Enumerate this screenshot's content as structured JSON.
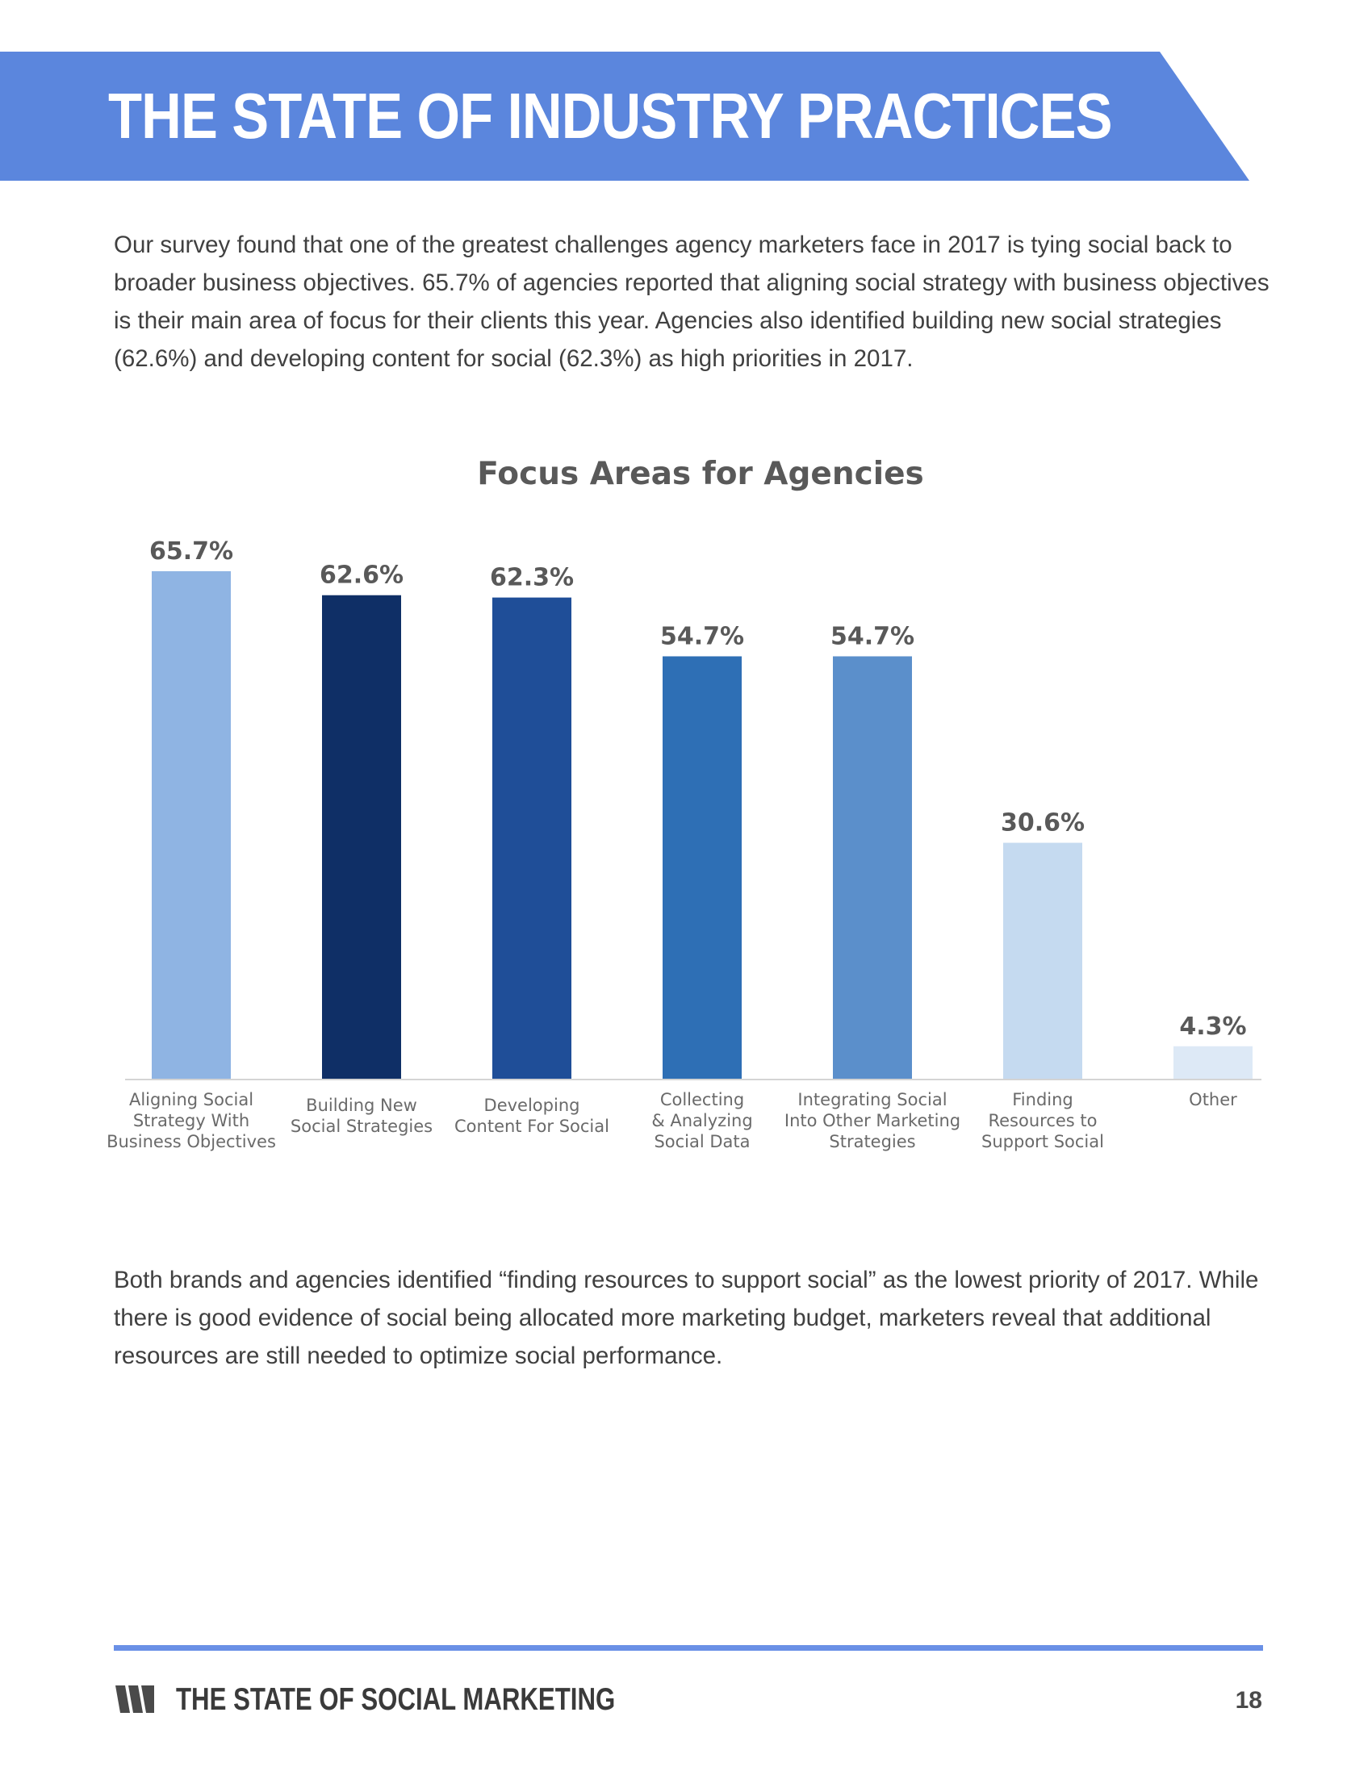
{
  "header": {
    "title": "THE STATE OF INDUSTRY PRACTICES",
    "banner_color": "#5b86dd"
  },
  "intro_text": "Our survey found that one of the greatest challenges agency marketers face in 2017 is tying social back to broader business objectives. 65.7% of agencies reported that aligning social strategy with business objectives is their main area of focus for their clients this year. Agencies also identified building new social strategies (62.6%) and developing content for social (62.3%) as high priorities in 2017.",
  "chart_data": {
    "type": "bar",
    "title": "Focus Areas for Agencies",
    "xlabel": "",
    "ylabel": "",
    "ylim": [
      0,
      70
    ],
    "grid": false,
    "legend": "none",
    "categories": [
      [
        "Aligning Social",
        "Strategy With",
        "Business Objectives"
      ],
      [
        "Building New",
        "Social Strategies"
      ],
      [
        "Developing",
        "Content For Social"
      ],
      [
        "Collecting",
        "& Analyzing",
        "Social Data"
      ],
      [
        "Integrating Social",
        "Into Other Marketing",
        "Strategies"
      ],
      [
        "Finding",
        "Resources to",
        "Support Social"
      ],
      [
        "Other"
      ]
    ],
    "values": [
      65.7,
      62.6,
      62.3,
      54.7,
      54.7,
      30.6,
      4.3
    ],
    "value_labels": [
      "65.7%",
      "62.6%",
      "62.3%",
      "54.7%",
      "54.7%",
      "30.6%",
      "4.3%"
    ],
    "colors": [
      "#8fb4e3",
      "#0f2f66",
      "#1f4e98",
      "#2e6fb5",
      "#5b8fcb",
      "#c5daf0",
      "#dde9f6"
    ]
  },
  "closing_text": "Both brands and agencies identified “finding resources to support social” as the lowest priority of 2017. While there is good evidence of social being allocated more marketing budget, marketers reveal that additional resources are still needed to optimize social performance.",
  "footer": {
    "title": "THE STATE OF SOCIAL MARKETING",
    "page_number": "18",
    "rule_color": "#6a90e6",
    "logo_icon": "sprout-logo-icon"
  }
}
